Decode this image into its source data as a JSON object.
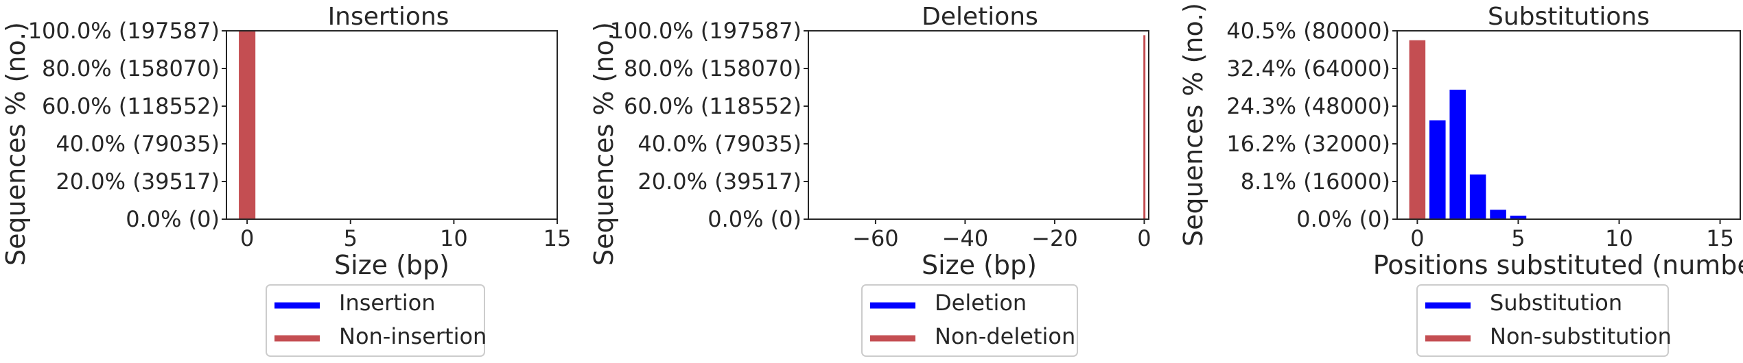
{
  "chart_data": [
    {
      "type": "bar",
      "title": "Insertions",
      "xlabel": "Size (bp)",
      "ylabel": "Sequences % (no.)",
      "xlim": [
        -1,
        15
      ],
      "ylim": [
        0,
        197587
      ],
      "xticks": [
        0,
        5,
        10,
        15
      ],
      "xtick_labels": [
        "0",
        "5",
        "10",
        "15"
      ],
      "yticks": [
        0,
        39517,
        79035,
        118552,
        158070,
        197587
      ],
      "ytick_labels": [
        "0.0% (0)",
        "20.0% (39517)",
        "40.0% (79035)",
        "60.0% (118552)",
        "80.0% (158070)",
        "100.0% (197587)"
      ],
      "bar_width": 0.8,
      "series": [
        {
          "name": "Insertion",
          "color": "#0000ff",
          "points": []
        },
        {
          "name": "Non-insertion",
          "color": "#c44e52",
          "points": [
            {
              "x": 0,
              "y": 197587
            }
          ]
        }
      ],
      "legend": {
        "placement": "below",
        "entries": [
          "Insertion",
          "Non-insertion"
        ]
      },
      "grid": false
    },
    {
      "type": "bar",
      "title": "Deletions",
      "xlabel": "Size (bp)",
      "ylabel": "Sequences % (no.)",
      "xlim": [
        -75,
        1
      ],
      "ylim": [
        0,
        197587
      ],
      "xticks": [
        -60,
        -40,
        -20,
        0
      ],
      "xtick_labels": [
        "−60",
        "−40",
        "−20",
        "0"
      ],
      "yticks": [
        0,
        39517,
        79035,
        118552,
        158070,
        197587
      ],
      "ytick_labels": [
        "0.0% (0)",
        "20.0% (39517)",
        "40.0% (79035)",
        "60.0% (118552)",
        "80.0% (158070)",
        "100.0% (197587)"
      ],
      "bar_width": 0.4,
      "series": [
        {
          "name": "Deletion",
          "color": "#0000ff",
          "points": []
        },
        {
          "name": "Non-deletion",
          "color": "#c44e52",
          "points": [
            {
              "x": 0,
              "y": 193000
            }
          ]
        }
      ],
      "legend": {
        "placement": "below",
        "entries": [
          "Deletion",
          "Non-deletion"
        ]
      },
      "grid": false
    },
    {
      "type": "bar",
      "title": "Substitutions",
      "xlabel": "Positions substituted (number)",
      "ylabel": "Sequences % (no.)",
      "xlim": [
        -1,
        16
      ],
      "ylim": [
        0,
        80000
      ],
      "xticks": [
        0,
        5,
        10,
        15
      ],
      "xtick_labels": [
        "0",
        "5",
        "10",
        "15"
      ],
      "yticks": [
        0,
        16000,
        32000,
        48000,
        64000,
        80000
      ],
      "ytick_labels": [
        "0.0% (0)",
        "8.1% (16000)",
        "16.2% (32000)",
        "24.3% (48000)",
        "32.4% (64000)",
        "40.5% (80000)"
      ],
      "bar_width": 0.8,
      "series": [
        {
          "name": "Substitution",
          "color": "#0000ff",
          "points": [
            {
              "x": 1,
              "y": 42000
            },
            {
              "x": 2,
              "y": 55000
            },
            {
              "x": 3,
              "y": 19000
            },
            {
              "x": 4,
              "y": 4000
            },
            {
              "x": 5,
              "y": 1500
            }
          ]
        },
        {
          "name": "Non-substitution",
          "color": "#c44e52",
          "points": [
            {
              "x": 0,
              "y": 76000
            }
          ]
        }
      ],
      "legend": {
        "placement": "below",
        "entries": [
          "Substitution",
          "Non-substitution"
        ]
      },
      "grid": false
    }
  ]
}
